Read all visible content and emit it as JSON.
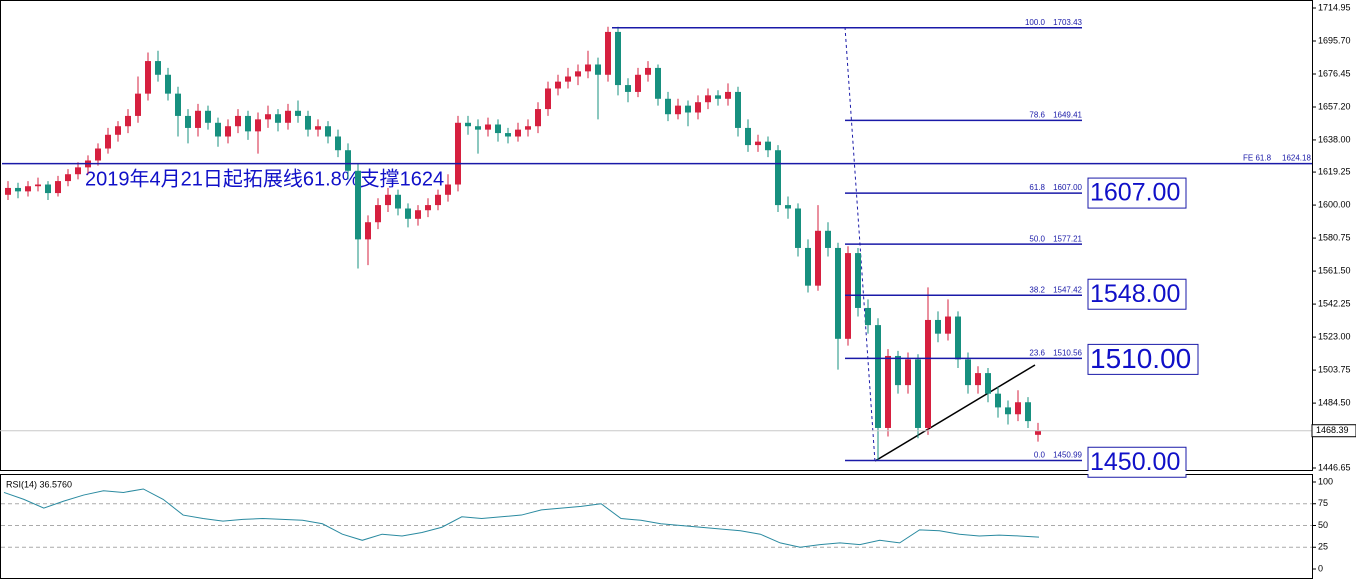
{
  "chart_data": {
    "type": "candlestick",
    "ylim": [
      1446.65,
      1714.95
    ],
    "yticks": [
      1714.95,
      {
        "value": 1695.7,
        "label": "1695.70"
      },
      1676.45,
      {
        "value": 1657.2,
        "label": "1657.20"
      },
      {
        "value": 1638,
        "label": "1638.00"
      },
      1619.25,
      {
        "value": 1600,
        "label": "1600.00"
      },
      1580.75,
      {
        "value": 1561.5,
        "label": "1561.50"
      },
      1542.25,
      {
        "value": 1523,
        "label": "1523.00"
      },
      1503.75,
      {
        "value": 1484.5,
        "label": "1484.50"
      },
      1446.65
    ],
    "up_color": "#d6203f",
    "down_color": "#17907f",
    "candles": [
      [
        1606,
        1614,
        1603,
        1610
      ],
      [
        1610,
        1613,
        1604,
        1608
      ],
      [
        1608,
        1614,
        1605,
        1611
      ],
      [
        1611,
        1616,
        1608,
        1612
      ],
      [
        1612,
        1614,
        1603,
        1607
      ],
      [
        1607,
        1617,
        1605,
        1614
      ],
      [
        1614,
        1621,
        1611,
        1618
      ],
      [
        1618,
        1625,
        1615,
        1622
      ],
      [
        1622,
        1629,
        1618,
        1626
      ],
      [
        1626,
        1636,
        1623,
        1633
      ],
      [
        1633,
        1645,
        1630,
        1641
      ],
      [
        1641,
        1649,
        1637,
        1646
      ],
      [
        1646,
        1656,
        1642,
        1652
      ],
      [
        1652,
        1675,
        1648,
        1665
      ],
      [
        1665,
        1689,
        1661,
        1684
      ],
      [
        1684,
        1690,
        1672,
        1676
      ],
      [
        1676,
        1680,
        1661,
        1665
      ],
      [
        1665,
        1669,
        1640,
        1652
      ],
      [
        1652,
        1656,
        1636,
        1645
      ],
      [
        1645,
        1659,
        1640,
        1655
      ],
      [
        1655,
        1658,
        1644,
        1648
      ],
      [
        1648,
        1651,
        1634,
        1640
      ],
      [
        1640,
        1650,
        1636,
        1646
      ],
      [
        1646,
        1656,
        1642,
        1652
      ],
      [
        1652,
        1655,
        1638,
        1643
      ],
      [
        1643,
        1654,
        1630,
        1650
      ],
      [
        1650,
        1658,
        1645,
        1653
      ],
      [
        1653,
        1656,
        1643,
        1648
      ],
      [
        1648,
        1659,
        1644,
        1655
      ],
      [
        1655,
        1661,
        1648,
        1652
      ],
      [
        1652,
        1655,
        1640,
        1644
      ],
      [
        1644,
        1650,
        1640,
        1646
      ],
      [
        1646,
        1649,
        1636,
        1640
      ],
      [
        1640,
        1644,
        1628,
        1632
      ],
      [
        1632,
        1636,
        1615,
        1620
      ],
      [
        1620,
        1624,
        1563,
        1580
      ],
      [
        1580,
        1594,
        1565,
        1590
      ],
      [
        1590,
        1604,
        1586,
        1600
      ],
      [
        1600,
        1610,
        1596,
        1606
      ],
      [
        1606,
        1609,
        1594,
        1598
      ],
      [
        1598,
        1601,
        1587,
        1592
      ],
      [
        1592,
        1600,
        1588,
        1597
      ],
      [
        1597,
        1604,
        1593,
        1600
      ],
      [
        1600,
        1609,
        1597,
        1606
      ],
      [
        1606,
        1618,
        1602,
        1612
      ],
      [
        1612,
        1652,
        1608,
        1648
      ],
      [
        1648,
        1652,
        1641,
        1646
      ],
      [
        1646,
        1650,
        1630,
        1644
      ],
      [
        1644,
        1651,
        1640,
        1647
      ],
      [
        1647,
        1650,
        1637,
        1642
      ],
      [
        1642,
        1645,
        1636,
        1640
      ],
      [
        1640,
        1648,
        1637,
        1644
      ],
      [
        1644,
        1650,
        1640,
        1646
      ],
      [
        1646,
        1660,
        1642,
        1656
      ],
      [
        1656,
        1672,
        1652,
        1668
      ],
      [
        1668,
        1676,
        1664,
        1672
      ],
      [
        1672,
        1680,
        1668,
        1675
      ],
      [
        1675,
        1682,
        1670,
        1678
      ],
      [
        1678,
        1690,
        1674,
        1682
      ],
      [
        1682,
        1686,
        1650,
        1676
      ],
      [
        1676,
        1704,
        1672,
        1701
      ],
      [
        1701,
        1704,
        1664,
        1670
      ],
      [
        1670,
        1674,
        1660,
        1666
      ],
      [
        1666,
        1680,
        1663,
        1676
      ],
      [
        1676,
        1684,
        1672,
        1680
      ],
      [
        1680,
        1682,
        1658,
        1662
      ],
      [
        1662,
        1666,
        1649,
        1653
      ],
      [
        1653,
        1662,
        1650,
        1658
      ],
      [
        1658,
        1661,
        1646,
        1654
      ],
      [
        1654,
        1664,
        1650,
        1660
      ],
      [
        1660,
        1668,
        1656,
        1664
      ],
      [
        1664,
        1667,
        1658,
        1662
      ],
      [
        1662,
        1671,
        1658,
        1666
      ],
      [
        1666,
        1669,
        1640,
        1645
      ],
      [
        1645,
        1650,
        1631,
        1635
      ],
      [
        1635,
        1641,
        1631,
        1637
      ],
      [
        1637,
        1640,
        1628,
        1632
      ],
      [
        1632,
        1635,
        1596,
        1600
      ],
      [
        1600,
        1605,
        1592,
        1598
      ],
      [
        1598,
        1601,
        1570,
        1575
      ],
      [
        1575,
        1580,
        1549,
        1553
      ],
      [
        1553,
        1600,
        1550,
        1585
      ],
      [
        1585,
        1590,
        1570,
        1575
      ],
      [
        1575,
        1578,
        1504,
        1522
      ],
      [
        1522,
        1576,
        1518,
        1572
      ],
      [
        1572,
        1575,
        1535,
        1540
      ],
      [
        1540,
        1545,
        1525,
        1530
      ],
      [
        1530,
        1534,
        1451,
        1470
      ],
      [
        1470,
        1516,
        1465,
        1512
      ],
      [
        1512,
        1515,
        1490,
        1495
      ],
      [
        1495,
        1514,
        1490,
        1510
      ],
      [
        1510,
        1513,
        1464,
        1470
      ],
      [
        1470,
        1552,
        1466,
        1533
      ],
      [
        1533,
        1538,
        1520,
        1525
      ],
      [
        1525,
        1545,
        1521,
        1535
      ],
      [
        1535,
        1538,
        1505,
        1510
      ],
      [
        1510,
        1514,
        1490,
        1495
      ],
      [
        1495,
        1506,
        1490,
        1502
      ],
      [
        1502,
        1505,
        1485,
        1490
      ],
      [
        1490,
        1494,
        1476,
        1482
      ],
      [
        1482,
        1486,
        1472,
        1478
      ],
      [
        1478,
        1492,
        1474,
        1485
      ],
      [
        1485,
        1488,
        1470,
        1474
      ],
      [
        1466,
        1473,
        1462,
        1468.39
      ]
    ],
    "current_price": 1468.39,
    "fe_label": "FE 61.8",
    "fe_price": 1624.18,
    "annotation": "2019年4月21日起拓展线61.8%支撑1624",
    "fib": [
      {
        "level": "100.0",
        "price": 1703.43
      },
      {
        "level": "78.6",
        "price": 1649.41
      },
      {
        "level": "61.8",
        "price": {
          "value": 1607,
          "label": "1607.00"
        }
      },
      {
        "level": "50.0",
        "price": 1577.21
      },
      {
        "level": "38.2",
        "price": 1547.42
      },
      {
        "level": "23.6",
        "price": 1510.56
      },
      {
        "level": "0.0",
        "price": 1450.99
      }
    ],
    "boxes": [
      {
        "value": 1607,
        "label": "1607.00"
      },
      {
        "value": 1548,
        "label": "1548.00"
      },
      {
        "value": 1510,
        "label": "1510.00"
      },
      {
        "value": 1450,
        "label": "1450.00"
      }
    ],
    "rsi_title": "RSI(14) 36.5760",
    "rsi_color": "#2a8aa0",
    "rsi_ylim": [
      0,
      100
    ],
    "rsi_yticks": [
      100,
      75,
      50,
      25,
      0
    ],
    "rsi_levels": [
      75,
      50,
      25
    ],
    "rsi": [
      88,
      80,
      70,
      78,
      85,
      90,
      88,
      92,
      80,
      62,
      58,
      55,
      57,
      58,
      57,
      56,
      52,
      40,
      33,
      40,
      38,
      42,
      48,
      60,
      58,
      60,
      62,
      68,
      70,
      72,
      75,
      58,
      56,
      52,
      50,
      48,
      46,
      44,
      40,
      30,
      25,
      28,
      30,
      28,
      33,
      30,
      45,
      44,
      40,
      38,
      39,
      38,
      36.576
    ]
  }
}
